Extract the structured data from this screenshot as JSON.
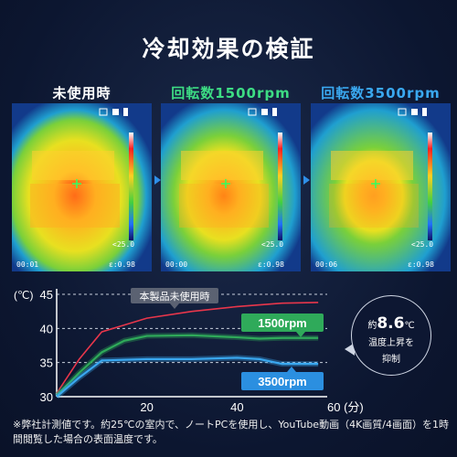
{
  "title": "冷却効果の検証",
  "panels": [
    {
      "label": "未使用時",
      "color": "#ffffff",
      "time": "00:01",
      "emiss": "ε:0.98",
      "scale_min": "<25.0"
    },
    {
      "label": "回転数1500rpm",
      "color": "#3ddc84",
      "time": "00:00",
      "emiss": "ε:0.98",
      "scale_min": "<25.0"
    },
    {
      "label": "回転数3500rpm",
      "color": "#3aa8f0",
      "time": "00:06",
      "emiss": "ε:0.98",
      "scale_min": "<25.0"
    }
  ],
  "bubble": {
    "prefix": "約",
    "value": "8.6",
    "unit": "℃",
    "line2": "温度上昇を",
    "line3": "抑制"
  },
  "note": "※弊社計測値です。約25℃の室内で、ノートPCを使用し、YouTube動画（4K画質/4画面）を1時間閲覧した場合の表面温度です。",
  "chart_data": {
    "type": "line",
    "ylabel": "(℃)",
    "xlabel": "(分)",
    "xlim": [
      0,
      60
    ],
    "ylim": [
      30,
      45
    ],
    "xticks": [
      20,
      40,
      60
    ],
    "yticks": [
      30,
      35,
      40,
      45
    ],
    "grid": "dashed horizontal",
    "series": [
      {
        "name": "本製品未使用時",
        "color": "#e8364b",
        "x": [
          0,
          5,
          10,
          20,
          30,
          40,
          50,
          58
        ],
        "y": [
          30.5,
          35.5,
          39.5,
          41.5,
          42.5,
          43.2,
          43.7,
          43.8
        ]
      },
      {
        "name": "1500rpm",
        "color": "#2faa5a",
        "x": [
          0,
          5,
          10,
          15,
          20,
          30,
          40,
          45,
          50,
          58
        ],
        "y": [
          30.2,
          33.5,
          36.5,
          38.2,
          38.9,
          39.0,
          38.7,
          38.5,
          38.6,
          38.6
        ]
      },
      {
        "name": "3500rpm",
        "color": "#3aa8f0",
        "x": [
          0,
          5,
          10,
          20,
          30,
          40,
          45,
          50,
          58
        ],
        "y": [
          30.0,
          32.8,
          35.3,
          35.5,
          35.5,
          35.7,
          35.5,
          34.8,
          34.8
        ]
      }
    ]
  }
}
